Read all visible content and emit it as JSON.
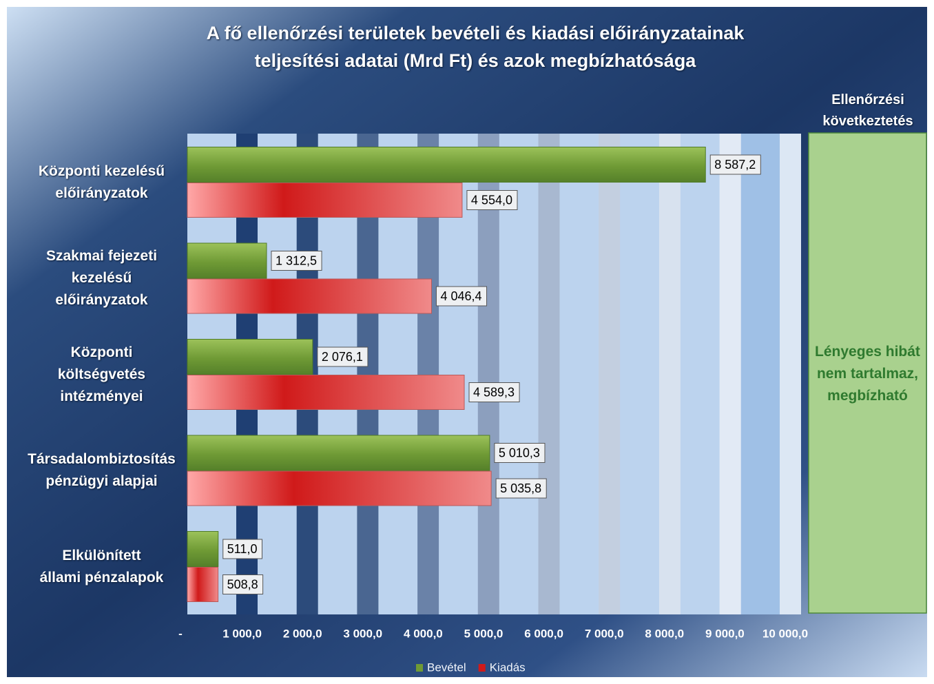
{
  "chart_data": {
    "type": "hbar",
    "title": "A fő ellenőrzési területek bevételi  és kiadási előirányzatainak\nteljesítési adatai (Mrd Ft) és azok megbízhatósága",
    "categories": [
      "Központi kezelésű\nelőirányzatok",
      "Szakmai fejezeti\nkezelésű\nelőirányzatok",
      "Központi\nköltségvetés\nintézményei",
      "Társadalombiztosítás\npénzügyi alapjai",
      "Elkülönített\nállami pénzalapok"
    ],
    "series": [
      {
        "name": "Bevétel",
        "color": "#6f9a35",
        "values": [
          8587.2,
          1312.5,
          2076.1,
          5010.3,
          511.0
        ],
        "value_labels": [
          "8 587,2",
          "1 312,5",
          "2 076,1",
          "5 010,3",
          "511,0"
        ]
      },
      {
        "name": "Kiadás",
        "color": "#d01a1a",
        "values": [
          4554.0,
          4046.4,
          4589.3,
          5035.8,
          508.8
        ],
        "value_labels": [
          "4 554,0",
          "4 046,4",
          "4 589,3",
          "5 035,8",
          "508,8"
        ]
      }
    ],
    "xlim": [
      0,
      10000
    ],
    "xticks": [
      {
        "value": 0,
        "label": "-"
      },
      {
        "value": 1000,
        "label": "1 000,0"
      },
      {
        "value": 2000,
        "label": "2 000,0"
      },
      {
        "value": 3000,
        "label": "3 000,0"
      },
      {
        "value": 4000,
        "label": "4 000,0"
      },
      {
        "value": 5000,
        "label": "5 000,0"
      },
      {
        "value": 6000,
        "label": "6 000,0"
      },
      {
        "value": 7000,
        "label": "7 000,0"
      },
      {
        "value": 8000,
        "label": "8 000,0"
      },
      {
        "value": 9000,
        "label": "9 000,0"
      },
      {
        "value": 10000,
        "label": "10 000,0"
      }
    ],
    "legend": "bottom",
    "side_panel": {
      "header": "Ellenőrzési\nkövetkeztetés",
      "text": "Lényeges hibát\nnem tartalmaz,\nmegbízható"
    }
  }
}
